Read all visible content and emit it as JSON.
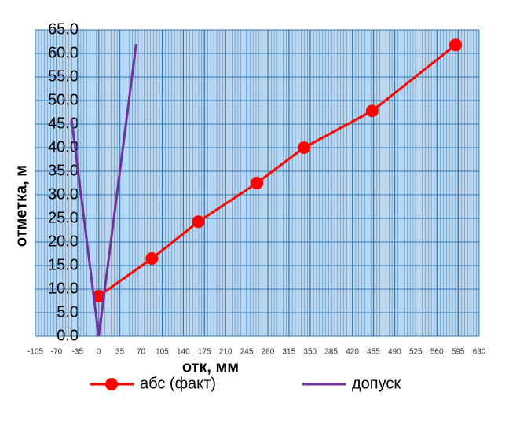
{
  "chart_data": {
    "type": "line",
    "xlabel": "отк, мм",
    "ylabel": "отметка, м",
    "xlim": [
      -105,
      630
    ],
    "xticks": [
      -105,
      -70,
      -35,
      0,
      35,
      70,
      105,
      140,
      175,
      210,
      245,
      280,
      315,
      350,
      385,
      420,
      455,
      490,
      525,
      560,
      595,
      630
    ],
    "ylim": [
      0,
      65
    ],
    "yticks": [
      {
        "value": 0,
        "label": "0.0"
      },
      {
        "value": 5,
        "label": "5.0"
      },
      {
        "value": 10,
        "label": "10.0"
      },
      {
        "value": 15,
        "label": "15.0"
      },
      {
        "value": 20,
        "label": "20.0"
      },
      {
        "value": 25,
        "label": "25.0"
      },
      {
        "value": 30,
        "label": "30.0"
      },
      {
        "value": 35,
        "label": "35.0"
      },
      {
        "value": 40,
        "label": "40.0"
      },
      {
        "value": 45,
        "label": "45.0"
      },
      {
        "value": 50,
        "label": "50.0"
      },
      {
        "value": 55,
        "label": "55.0"
      },
      {
        "value": 60,
        "label": "60.0"
      },
      {
        "value": 65,
        "label": "65.0"
      }
    ],
    "grid": true,
    "series": [
      {
        "name": "абс (факт)",
        "color": "#ff0000",
        "markers": true,
        "x": [
          0,
          88,
          165,
          262,
          340,
          453,
          591
        ],
        "values": [
          8.5,
          16.5,
          24.3,
          32.5,
          40,
          47.8,
          61.8
        ]
      },
      {
        "name": "допуск",
        "color": "#7030a0",
        "markers": false,
        "x": [
          -45,
          0,
          62
        ],
        "values": [
          46,
          0,
          62
        ]
      }
    ]
  }
}
